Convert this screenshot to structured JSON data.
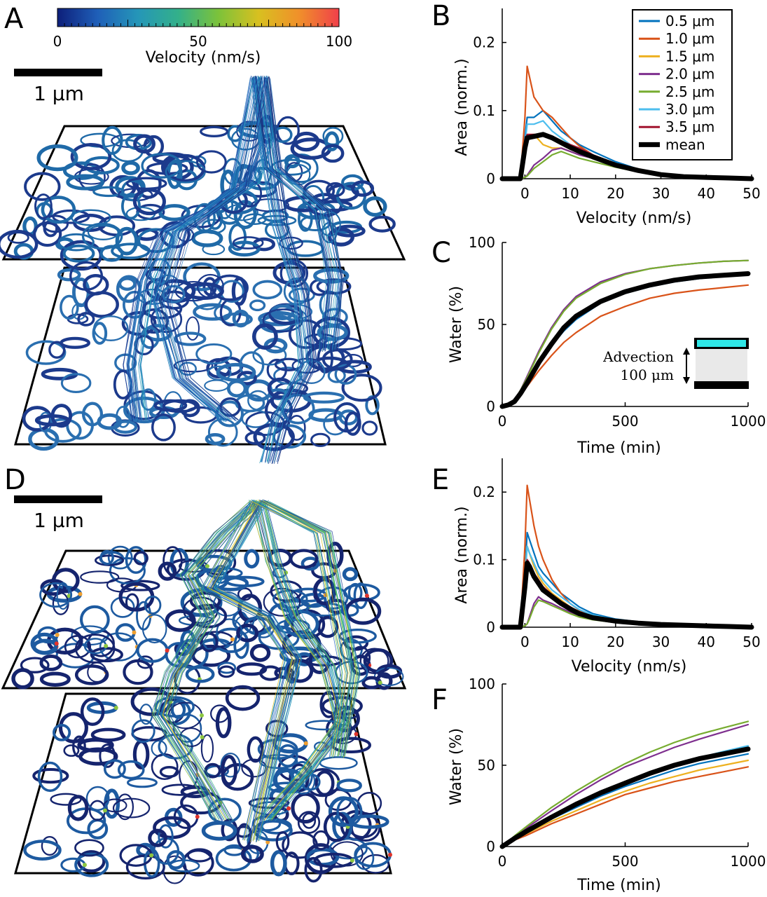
{
  "panels": {
    "A": {
      "letter": "A"
    },
    "B": {
      "letter": "B"
    },
    "C": {
      "letter": "C"
    },
    "D": {
      "letter": "D"
    },
    "E": {
      "letter": "E"
    },
    "F": {
      "letter": "F"
    }
  },
  "colorbar": {
    "label": "Velocity (nm/s)",
    "ticks": [
      "0",
      "50",
      "100"
    ],
    "colors": [
      "#0d1f7a",
      "#1f5fb8",
      "#2596b8",
      "#33b08a",
      "#7cc23a",
      "#d8c020",
      "#f0902a",
      "#f0404a"
    ]
  },
  "scalebars": {
    "A": "1 μm",
    "D": "1 μm"
  },
  "inset": {
    "line1": "Advection",
    "line2": "100 μm",
    "top_color": "#2ee6e6"
  },
  "colors": {
    "0.5 μm": "#0072bd",
    "1.0 μm": "#d95319",
    "1.5 μm": "#edb120",
    "2.0 μm": "#7e2f8e",
    "2.5 μm": "#77ac30",
    "3.0 μm": "#4dbeee",
    "3.5 μm": "#a2142f",
    "mean": "#000000"
  },
  "chart_data": [
    {
      "id": "B",
      "type": "line",
      "xlabel": "Velocity (nm/s)",
      "ylabel": "Area (norm.)",
      "xlim": [
        -5,
        50
      ],
      "ylim": [
        0,
        0.25
      ],
      "xticks": [
        "0",
        "10",
        "20",
        "30",
        "40",
        "50"
      ],
      "yticks": [
        "0",
        "0.1",
        "0.2"
      ],
      "legend": [
        "0.5 μm",
        "1.0 μm",
        "1.5 μm",
        "2.0 μm",
        "2.5 μm",
        "3.0 μm",
        "3.5 μm",
        "mean"
      ],
      "legend_position": "top-right",
      "x": [
        -5,
        -1,
        0,
        0.5,
        2,
        4,
        6,
        8,
        10,
        12,
        15,
        20,
        25,
        30,
        35,
        40,
        45,
        50
      ],
      "series": [
        {
          "name": "0.5 μm",
          "values": [
            0,
            0,
            0.06,
            0.09,
            0.09,
            0.1,
            0.085,
            0.07,
            0.06,
            0.05,
            0.04,
            0.025,
            0.014,
            0.007,
            0.004,
            0.002,
            0.001,
            0
          ]
        },
        {
          "name": "1.0 μm",
          "values": [
            0,
            0,
            0.09,
            0.165,
            0.12,
            0.1,
            0.09,
            0.075,
            0.06,
            0.048,
            0.035,
            0.022,
            0.012,
            0.006,
            0.003,
            0.002,
            0.001,
            0
          ]
        },
        {
          "name": "1.5 μm",
          "values": [
            0,
            0,
            0.04,
            0.06,
            0.065,
            0.05,
            0.045,
            0.045,
            0.04,
            0.035,
            0.03,
            0.02,
            0.012,
            0.006,
            0.003,
            0.002,
            0.001,
            0
          ]
        },
        {
          "name": "2.0 μm",
          "values": [
            0,
            0,
            0.002,
            0.005,
            0.02,
            0.03,
            0.042,
            0.045,
            0.04,
            0.035,
            0.03,
            0.02,
            0.012,
            0.006,
            0.003,
            0.001,
            0.0005,
            0
          ]
        },
        {
          "name": "2.5 μm",
          "values": [
            0,
            0,
            0.002,
            0.004,
            0.015,
            0.025,
            0.035,
            0.04,
            0.035,
            0.03,
            0.025,
            0.017,
            0.01,
            0.005,
            0.003,
            0.001,
            0.0005,
            0
          ]
        },
        {
          "name": "3.0 μm",
          "values": [
            0,
            0,
            0.05,
            0.08,
            0.08,
            0.085,
            0.07,
            0.06,
            0.05,
            0.045,
            0.035,
            0.022,
            0.013,
            0.007,
            0.004,
            0.002,
            0.001,
            0
          ]
        },
        {
          "name": "3.5 μm",
          "values": [
            0,
            0,
            0.055,
            0.065,
            0.065,
            0.065,
            0.06,
            0.055,
            0.05,
            0.045,
            0.035,
            0.022,
            0.013,
            0.007,
            0.004,
            0.002,
            0.001,
            0
          ]
        },
        {
          "name": "mean",
          "values": [
            0,
            0,
            0.045,
            0.06,
            0.062,
            0.065,
            0.06,
            0.053,
            0.046,
            0.04,
            0.032,
            0.02,
            0.012,
            0.006,
            0.003,
            0.002,
            0.001,
            0
          ]
        }
      ]
    },
    {
      "id": "C",
      "type": "line",
      "xlabel": "Time (min)",
      "ylabel": "Water (%)",
      "xlim": [
        0,
        1000
      ],
      "ylim": [
        0,
        100
      ],
      "xticks": [
        "0",
        "500",
        "1000"
      ],
      "yticks": [
        "0",
        "50",
        "100"
      ],
      "x": [
        0,
        25,
        50,
        75,
        100,
        150,
        200,
        250,
        300,
        400,
        500,
        600,
        700,
        800,
        900,
        1000
      ],
      "series": [
        {
          "name": "0.5 μm",
          "values": [
            0,
            1,
            3,
            8,
            14,
            26,
            37,
            46,
            53,
            63,
            69,
            73,
            76,
            78,
            79.5,
            80.5
          ]
        },
        {
          "name": "1.0 μm",
          "values": [
            0,
            1,
            2.5,
            6.5,
            12,
            22,
            31,
            39,
            45,
            55,
            61,
            66,
            69,
            71,
            72.5,
            74
          ]
        },
        {
          "name": "1.5 μm",
          "values": [
            0,
            1,
            3,
            8,
            14,
            27,
            38,
            47,
            54,
            64,
            70,
            74,
            77,
            79,
            80,
            81
          ]
        },
        {
          "name": "2.0 μm",
          "values": [
            0,
            1,
            4,
            10,
            18,
            34,
            48,
            59,
            67,
            76,
            81,
            84,
            86,
            87.5,
            88.5,
            89
          ]
        },
        {
          "name": "2.5 μm",
          "values": [
            0,
            1,
            4,
            10,
            17,
            33,
            47,
            58,
            66,
            75,
            80.5,
            84,
            86,
            87.5,
            88.5,
            89
          ]
        },
        {
          "name": "3.0 μm",
          "values": [
            0,
            1,
            3,
            8,
            14,
            27,
            38,
            47,
            54,
            64,
            70,
            74,
            77,
            79,
            80,
            81
          ]
        },
        {
          "name": "3.5 μm",
          "values": [
            0,
            1,
            3,
            8,
            14,
            27,
            38,
            47,
            54,
            64,
            70,
            74,
            77,
            79,
            80,
            81
          ]
        },
        {
          "name": "mean",
          "values": [
            0,
            1,
            3,
            8,
            14,
            27,
            38,
            48,
            55,
            64,
            70,
            74,
            77,
            79,
            80,
            81
          ]
        }
      ]
    },
    {
      "id": "E",
      "type": "line",
      "xlabel": "Velocity (nm/s)",
      "ylabel": "Area (norm.)",
      "xlim": [
        -5,
        50
      ],
      "ylim": [
        0,
        0.25
      ],
      "xticks": [
        "0",
        "10",
        "20",
        "30",
        "40",
        "50"
      ],
      "yticks": [
        "0",
        "0.1",
        "0.2"
      ],
      "x": [
        -5,
        -1,
        0,
        0.5,
        1,
        2,
        3,
        4,
        6,
        8,
        10,
        12,
        15,
        20,
        25,
        30,
        35,
        40,
        45,
        50
      ],
      "series": [
        {
          "name": "0.5 μm",
          "values": [
            0,
            0,
            0.08,
            0.14,
            0.13,
            0.11,
            0.09,
            0.08,
            0.065,
            0.05,
            0.04,
            0.03,
            0.02,
            0.012,
            0.008,
            0.005,
            0.003,
            0.002,
            0.001,
            0
          ]
        },
        {
          "name": "1.0 μm",
          "values": [
            0,
            0,
            0.12,
            0.21,
            0.19,
            0.15,
            0.12,
            0.1,
            0.07,
            0.05,
            0.035,
            0.025,
            0.017,
            0.01,
            0.007,
            0.005,
            0.003,
            0.002,
            0.001,
            0
          ]
        },
        {
          "name": "1.5 μm",
          "values": [
            0,
            0,
            0.08,
            0.12,
            0.11,
            0.09,
            0.075,
            0.065,
            0.05,
            0.04,
            0.03,
            0.022,
            0.015,
            0.009,
            0.006,
            0.004,
            0.003,
            0.002,
            0.001,
            0
          ]
        },
        {
          "name": "2.0 μm",
          "values": [
            0,
            0,
            0.002,
            0.005,
            0.015,
            0.035,
            0.045,
            0.04,
            0.035,
            0.028,
            0.022,
            0.017,
            0.012,
            0.008,
            0.005,
            0.004,
            0.002,
            0.001,
            0.001,
            0
          ]
        },
        {
          "name": "2.5 μm",
          "values": [
            0,
            0,
            0.002,
            0.005,
            0.012,
            0.03,
            0.04,
            0.038,
            0.032,
            0.026,
            0.02,
            0.015,
            0.011,
            0.007,
            0.005,
            0.003,
            0.002,
            0.001,
            0.001,
            0
          ]
        },
        {
          "name": "3.0 μm",
          "values": [
            0,
            0,
            0.07,
            0.12,
            0.11,
            0.095,
            0.08,
            0.07,
            0.055,
            0.045,
            0.035,
            0.026,
            0.018,
            0.011,
            0.007,
            0.005,
            0.003,
            0.002,
            0.001,
            0
          ]
        },
        {
          "name": "3.5 μm",
          "values": [
            0,
            0,
            0.06,
            0.1,
            0.095,
            0.08,
            0.07,
            0.06,
            0.048,
            0.038,
            0.03,
            0.022,
            0.016,
            0.01,
            0.006,
            0.004,
            0.003,
            0.002,
            0.001,
            0
          ]
        },
        {
          "name": "mean",
          "values": [
            0,
            0,
            0.06,
            0.095,
            0.09,
            0.075,
            0.065,
            0.055,
            0.045,
            0.035,
            0.027,
            0.02,
            0.014,
            0.009,
            0.006,
            0.004,
            0.003,
            0.002,
            0.001,
            0
          ]
        }
      ]
    },
    {
      "id": "F",
      "type": "line",
      "xlabel": "Time (min)",
      "ylabel": "Water (%)",
      "xlim": [
        0,
        1000
      ],
      "ylim": [
        0,
        100
      ],
      "xticks": [
        "0",
        "500",
        "1000"
      ],
      "yticks": [
        "0",
        "50",
        "100"
      ],
      "x": [
        0,
        50,
        100,
        200,
        300,
        400,
        500,
        600,
        700,
        800,
        900,
        1000
      ],
      "series": [
        {
          "name": "0.5 μm",
          "values": [
            0,
            5,
            9,
            17,
            24,
            31,
            37,
            42,
            47,
            51,
            54,
            57
          ]
        },
        {
          "name": "1.0 μm",
          "values": [
            0,
            4,
            7,
            14,
            20,
            26,
            32,
            36,
            40,
            43,
            46,
            49
          ]
        },
        {
          "name": "1.5 μm",
          "values": [
            0,
            4.5,
            8,
            15.5,
            22,
            28.5,
            34,
            39,
            43,
            47,
            50,
            53
          ]
        },
        {
          "name": "2.0 μm",
          "values": [
            0,
            6,
            11.5,
            22,
            32,
            41,
            49,
            55,
            61,
            66,
            70.5,
            75
          ]
        },
        {
          "name": "2.5 μm",
          "values": [
            0,
            6.5,
            12.5,
            24,
            34,
            43,
            51,
            58,
            64,
            69,
            73,
            77
          ]
        },
        {
          "name": "3.0 μm",
          "values": [
            0,
            5,
            9.5,
            18,
            26,
            33,
            39,
            45,
            50,
            54.5,
            58.5,
            62
          ]
        },
        {
          "name": "3.5 μm",
          "values": [
            0,
            5,
            9,
            17.5,
            25,
            32,
            38,
            44,
            49,
            53,
            57,
            60
          ]
        },
        {
          "name": "mean",
          "values": [
            0,
            5,
            9.5,
            18,
            26,
            33,
            39,
            45,
            50,
            54,
            57,
            60
          ]
        }
      ]
    }
  ]
}
